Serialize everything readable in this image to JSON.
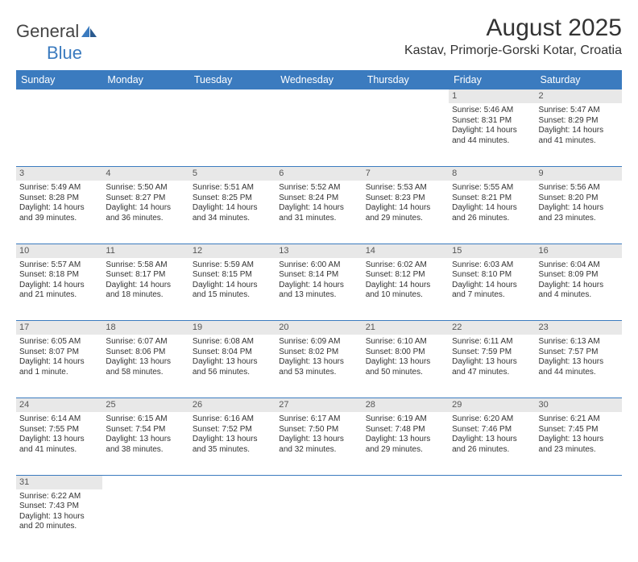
{
  "logo": {
    "text1": "General",
    "text2": "Blue"
  },
  "title": "August 2025",
  "location": "Kastav, Primorje-Gorski Kotar, Croatia",
  "colors": {
    "header_bg": "#3b7bbf",
    "header_text": "#ffffff",
    "daynum_bg": "#e8e8e8",
    "text": "#333333",
    "row_border": "#3b7bbf",
    "page_bg": "#ffffff"
  },
  "weekdays": [
    "Sunday",
    "Monday",
    "Tuesday",
    "Wednesday",
    "Thursday",
    "Friday",
    "Saturday"
  ],
  "weeks": [
    {
      "days": [
        null,
        null,
        null,
        null,
        null,
        {
          "n": "1",
          "sr": "Sunrise: 5:46 AM",
          "ss": "Sunset: 8:31 PM",
          "d1": "Daylight: 14 hours",
          "d2": "and 44 minutes."
        },
        {
          "n": "2",
          "sr": "Sunrise: 5:47 AM",
          "ss": "Sunset: 8:29 PM",
          "d1": "Daylight: 14 hours",
          "d2": "and 41 minutes."
        }
      ]
    },
    {
      "days": [
        {
          "n": "3",
          "sr": "Sunrise: 5:49 AM",
          "ss": "Sunset: 8:28 PM",
          "d1": "Daylight: 14 hours",
          "d2": "and 39 minutes."
        },
        {
          "n": "4",
          "sr": "Sunrise: 5:50 AM",
          "ss": "Sunset: 8:27 PM",
          "d1": "Daylight: 14 hours",
          "d2": "and 36 minutes."
        },
        {
          "n": "5",
          "sr": "Sunrise: 5:51 AM",
          "ss": "Sunset: 8:25 PM",
          "d1": "Daylight: 14 hours",
          "d2": "and 34 minutes."
        },
        {
          "n": "6",
          "sr": "Sunrise: 5:52 AM",
          "ss": "Sunset: 8:24 PM",
          "d1": "Daylight: 14 hours",
          "d2": "and 31 minutes."
        },
        {
          "n": "7",
          "sr": "Sunrise: 5:53 AM",
          "ss": "Sunset: 8:23 PM",
          "d1": "Daylight: 14 hours",
          "d2": "and 29 minutes."
        },
        {
          "n": "8",
          "sr": "Sunrise: 5:55 AM",
          "ss": "Sunset: 8:21 PM",
          "d1": "Daylight: 14 hours",
          "d2": "and 26 minutes."
        },
        {
          "n": "9",
          "sr": "Sunrise: 5:56 AM",
          "ss": "Sunset: 8:20 PM",
          "d1": "Daylight: 14 hours",
          "d2": "and 23 minutes."
        }
      ]
    },
    {
      "days": [
        {
          "n": "10",
          "sr": "Sunrise: 5:57 AM",
          "ss": "Sunset: 8:18 PM",
          "d1": "Daylight: 14 hours",
          "d2": "and 21 minutes."
        },
        {
          "n": "11",
          "sr": "Sunrise: 5:58 AM",
          "ss": "Sunset: 8:17 PM",
          "d1": "Daylight: 14 hours",
          "d2": "and 18 minutes."
        },
        {
          "n": "12",
          "sr": "Sunrise: 5:59 AM",
          "ss": "Sunset: 8:15 PM",
          "d1": "Daylight: 14 hours",
          "d2": "and 15 minutes."
        },
        {
          "n": "13",
          "sr": "Sunrise: 6:00 AM",
          "ss": "Sunset: 8:14 PM",
          "d1": "Daylight: 14 hours",
          "d2": "and 13 minutes."
        },
        {
          "n": "14",
          "sr": "Sunrise: 6:02 AM",
          "ss": "Sunset: 8:12 PM",
          "d1": "Daylight: 14 hours",
          "d2": "and 10 minutes."
        },
        {
          "n": "15",
          "sr": "Sunrise: 6:03 AM",
          "ss": "Sunset: 8:10 PM",
          "d1": "Daylight: 14 hours",
          "d2": "and 7 minutes."
        },
        {
          "n": "16",
          "sr": "Sunrise: 6:04 AM",
          "ss": "Sunset: 8:09 PM",
          "d1": "Daylight: 14 hours",
          "d2": "and 4 minutes."
        }
      ]
    },
    {
      "days": [
        {
          "n": "17",
          "sr": "Sunrise: 6:05 AM",
          "ss": "Sunset: 8:07 PM",
          "d1": "Daylight: 14 hours",
          "d2": "and 1 minute."
        },
        {
          "n": "18",
          "sr": "Sunrise: 6:07 AM",
          "ss": "Sunset: 8:06 PM",
          "d1": "Daylight: 13 hours",
          "d2": "and 58 minutes."
        },
        {
          "n": "19",
          "sr": "Sunrise: 6:08 AM",
          "ss": "Sunset: 8:04 PM",
          "d1": "Daylight: 13 hours",
          "d2": "and 56 minutes."
        },
        {
          "n": "20",
          "sr": "Sunrise: 6:09 AM",
          "ss": "Sunset: 8:02 PM",
          "d1": "Daylight: 13 hours",
          "d2": "and 53 minutes."
        },
        {
          "n": "21",
          "sr": "Sunrise: 6:10 AM",
          "ss": "Sunset: 8:00 PM",
          "d1": "Daylight: 13 hours",
          "d2": "and 50 minutes."
        },
        {
          "n": "22",
          "sr": "Sunrise: 6:11 AM",
          "ss": "Sunset: 7:59 PM",
          "d1": "Daylight: 13 hours",
          "d2": "and 47 minutes."
        },
        {
          "n": "23",
          "sr": "Sunrise: 6:13 AM",
          "ss": "Sunset: 7:57 PM",
          "d1": "Daylight: 13 hours",
          "d2": "and 44 minutes."
        }
      ]
    },
    {
      "days": [
        {
          "n": "24",
          "sr": "Sunrise: 6:14 AM",
          "ss": "Sunset: 7:55 PM",
          "d1": "Daylight: 13 hours",
          "d2": "and 41 minutes."
        },
        {
          "n": "25",
          "sr": "Sunrise: 6:15 AM",
          "ss": "Sunset: 7:54 PM",
          "d1": "Daylight: 13 hours",
          "d2": "and 38 minutes."
        },
        {
          "n": "26",
          "sr": "Sunrise: 6:16 AM",
          "ss": "Sunset: 7:52 PM",
          "d1": "Daylight: 13 hours",
          "d2": "and 35 minutes."
        },
        {
          "n": "27",
          "sr": "Sunrise: 6:17 AM",
          "ss": "Sunset: 7:50 PM",
          "d1": "Daylight: 13 hours",
          "d2": "and 32 minutes."
        },
        {
          "n": "28",
          "sr": "Sunrise: 6:19 AM",
          "ss": "Sunset: 7:48 PM",
          "d1": "Daylight: 13 hours",
          "d2": "and 29 minutes."
        },
        {
          "n": "29",
          "sr": "Sunrise: 6:20 AM",
          "ss": "Sunset: 7:46 PM",
          "d1": "Daylight: 13 hours",
          "d2": "and 26 minutes."
        },
        {
          "n": "30",
          "sr": "Sunrise: 6:21 AM",
          "ss": "Sunset: 7:45 PM",
          "d1": "Daylight: 13 hours",
          "d2": "and 23 minutes."
        }
      ]
    },
    {
      "days": [
        {
          "n": "31",
          "sr": "Sunrise: 6:22 AM",
          "ss": "Sunset: 7:43 PM",
          "d1": "Daylight: 13 hours",
          "d2": "and 20 minutes."
        },
        null,
        null,
        null,
        null,
        null,
        null
      ]
    }
  ]
}
